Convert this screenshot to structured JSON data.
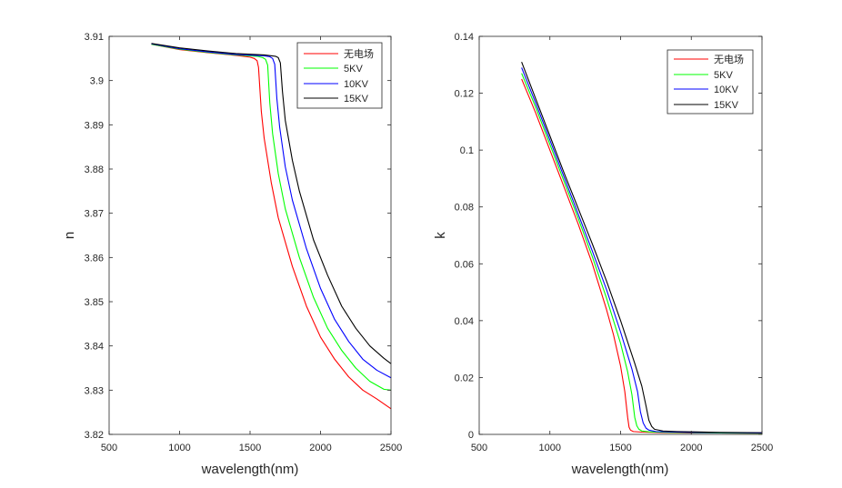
{
  "series_colors": [
    "#ff0000",
    "#00ff00",
    "#0000ff",
    "#000000"
  ],
  "chart_data": [
    {
      "type": "line",
      "title": "",
      "xlabel": "wavelength(nm)",
      "ylabel": "n",
      "xlim": [
        500,
        2500
      ],
      "ylim": [
        3.82,
        3.91
      ],
      "xticks": [
        500,
        1000,
        1500,
        2000,
        2500
      ],
      "xtick_labels": [
        "500",
        "1000",
        "1500",
        "2000",
        "2500"
      ],
      "yticks": [
        3.82,
        3.83,
        3.84,
        3.85,
        3.86,
        3.87,
        3.88,
        3.89,
        3.9,
        3.91
      ],
      "ytick_labels": [
        "3.82",
        "3.83",
        "3.84",
        "3.85",
        "3.86",
        "3.87",
        "3.88",
        "3.89",
        "3.9",
        "3.91"
      ],
      "grid": false,
      "legend_position": "top-right",
      "series": [
        {
          "name": "无电场",
          "x": [
            800,
            1000,
            1200,
            1400,
            1500,
            1530,
            1550,
            1560,
            1580,
            1600,
            1650,
            1700,
            1800,
            1900,
            2000,
            2100,
            2200,
            2300,
            2400,
            2500
          ],
          "y": [
            3.9082,
            3.907,
            3.9063,
            3.9057,
            3.9053,
            3.905,
            3.9045,
            3.903,
            3.893,
            3.887,
            3.877,
            3.869,
            3.858,
            3.849,
            3.842,
            3.837,
            3.833,
            3.83,
            3.828,
            3.8258
          ]
        },
        {
          "name": "5KV",
          "x": [
            800,
            1000,
            1200,
            1400,
            1550,
            1590,
            1610,
            1625,
            1640,
            1660,
            1700,
            1750,
            1850,
            1950,
            2050,
            2150,
            2250,
            2350,
            2450,
            2500
          ],
          "y": [
            3.9082,
            3.9071,
            3.9064,
            3.9058,
            3.9055,
            3.9052,
            3.9048,
            3.9035,
            3.895,
            3.888,
            3.879,
            3.871,
            3.86,
            3.851,
            3.844,
            3.839,
            3.835,
            3.832,
            3.8302,
            3.83
          ]
        },
        {
          "name": "10KV",
          "x": [
            800,
            1000,
            1200,
            1400,
            1600,
            1640,
            1660,
            1675,
            1690,
            1710,
            1750,
            1800,
            1900,
            2000,
            2100,
            2200,
            2300,
            2400,
            2500
          ],
          "y": [
            3.9083,
            3.9072,
            3.9065,
            3.9059,
            3.9056,
            3.9054,
            3.905,
            3.9037,
            3.896,
            3.8895,
            3.8805,
            3.873,
            3.862,
            3.853,
            3.846,
            3.841,
            3.837,
            3.8345,
            3.8328
          ]
        },
        {
          "name": "15KV",
          "x": [
            800,
            1000,
            1200,
            1400,
            1600,
            1680,
            1700,
            1715,
            1730,
            1750,
            1800,
            1850,
            1950,
            2050,
            2150,
            2250,
            2350,
            2450,
            2500
          ],
          "y": [
            3.9084,
            3.9074,
            3.9067,
            3.9061,
            3.9058,
            3.9055,
            3.9052,
            3.904,
            3.8975,
            3.891,
            3.882,
            3.875,
            3.864,
            3.856,
            3.849,
            3.844,
            3.84,
            3.8372,
            3.836
          ]
        }
      ]
    },
    {
      "type": "line",
      "title": "",
      "xlabel": "wavelength(nm)",
      "ylabel": "k",
      "xlim": [
        500,
        2500
      ],
      "ylim": [
        0,
        0.14
      ],
      "xticks": [
        500,
        1000,
        1500,
        2000,
        2500
      ],
      "xtick_labels": [
        "500",
        "1000",
        "1500",
        "2000",
        "2500"
      ],
      "yticks": [
        0,
        0.02,
        0.04,
        0.06,
        0.08,
        0.1,
        0.12,
        0.14
      ],
      "ytick_labels": [
        "0",
        "0.02",
        "0.04",
        "0.06",
        "0.08",
        "0.1",
        "0.12",
        "0.14"
      ],
      "grid": false,
      "legend_position": "top-right",
      "series": [
        {
          "name": "无电场",
          "x": [
            800,
            900,
            1000,
            1100,
            1200,
            1300,
            1400,
            1450,
            1500,
            1530,
            1550,
            1560,
            1570,
            1590,
            1650,
            1800,
            2000,
            2200,
            2500
          ],
          "y": [
            0.125,
            0.113,
            0.1,
            0.087,
            0.074,
            0.06,
            0.044,
            0.035,
            0.024,
            0.015,
            0.006,
            0.0025,
            0.0015,
            0.001,
            0.0008,
            0.0006,
            0.0005,
            0.0005,
            0.0004
          ]
        },
        {
          "name": "5KV",
          "x": [
            800,
            900,
            1000,
            1100,
            1200,
            1300,
            1400,
            1500,
            1550,
            1580,
            1600,
            1615,
            1630,
            1650,
            1700,
            1850,
            2000,
            2200,
            2500
          ],
          "y": [
            0.127,
            0.115,
            0.102,
            0.089,
            0.076,
            0.0625,
            0.048,
            0.032,
            0.022,
            0.014,
            0.006,
            0.003,
            0.0018,
            0.0012,
            0.0009,
            0.0007,
            0.0006,
            0.0005,
            0.0004
          ]
        },
        {
          "name": "10KV",
          "x": [
            800,
            900,
            1000,
            1100,
            1200,
            1300,
            1400,
            1500,
            1580,
            1620,
            1640,
            1660,
            1680,
            1700,
            1750,
            1900,
            2000,
            2200,
            2500
          ],
          "y": [
            0.129,
            0.1165,
            0.1035,
            0.0905,
            0.0775,
            0.0645,
            0.051,
            0.036,
            0.023,
            0.015,
            0.008,
            0.004,
            0.0022,
            0.0015,
            0.001,
            0.0008,
            0.0007,
            0.0006,
            0.0005
          ]
        },
        {
          "name": "15KV",
          "x": [
            800,
            900,
            1000,
            1100,
            1200,
            1300,
            1400,
            1500,
            1600,
            1650,
            1680,
            1700,
            1720,
            1740,
            1800,
            1900,
            2000,
            2200,
            2500
          ],
          "y": [
            0.131,
            0.118,
            0.105,
            0.092,
            0.0795,
            0.067,
            0.054,
            0.04,
            0.025,
            0.017,
            0.01,
            0.005,
            0.0028,
            0.0018,
            0.0012,
            0.001,
            0.0009,
            0.0007,
            0.0006
          ]
        }
      ]
    }
  ]
}
